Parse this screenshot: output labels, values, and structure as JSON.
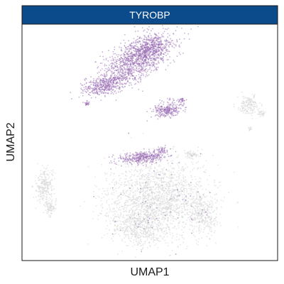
{
  "chart_data": {
    "type": "scatter",
    "title": "TYROBP",
    "xlabel": "UMAP1",
    "ylabel": "UMAP2",
    "grid": false,
    "legend": "none",
    "ticks": "none",
    "colors": {
      "strip": "#0b4a8b",
      "strip_border": "#1a1a1a",
      "high_expression": "#9b6fb5",
      "low_expression": "#dcdcdc",
      "panel_border": "#1a1a1a"
    },
    "clusters": [
      {
        "name": "upper-left",
        "expression": "high"
      },
      {
        "name": "upper-middle",
        "expression": "high"
      },
      {
        "name": "upper-right",
        "expression": "low"
      },
      {
        "name": "lower-center-top",
        "expression": "high"
      },
      {
        "name": "lower-center",
        "expression": "low"
      },
      {
        "name": "left",
        "expression": "low"
      }
    ]
  }
}
